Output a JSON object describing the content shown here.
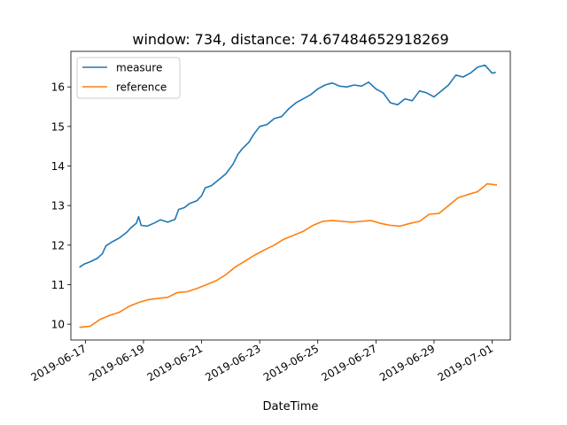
{
  "chart_data": {
    "type": "line",
    "title": "window: 734, distance: 74.67484652918269",
    "xlabel": "DateTime",
    "ylabel": "",
    "x_is_date": true,
    "xlim": [
      "2019-06-16T12:00",
      "2019-07-01T15:00"
    ],
    "ylim": [
      9.6,
      16.9
    ],
    "x_ticks": [
      "2019-06-17",
      "2019-06-19",
      "2019-06-21",
      "2019-06-23",
      "2019-06-25",
      "2019-06-27",
      "2019-06-29",
      "2019-07-01"
    ],
    "y_ticks": [
      10,
      11,
      12,
      13,
      14,
      15,
      16
    ],
    "grid": false,
    "legend_position": "top-left",
    "series": [
      {
        "name": "measure",
        "color": "#1f77b4",
        "points": [
          [
            "2019-06-16T19:00",
            11.44
          ],
          [
            "2019-06-16T23:00",
            11.52
          ],
          [
            "2019-06-17T04:00",
            11.58
          ],
          [
            "2019-06-17T10:00",
            11.67
          ],
          [
            "2019-06-17T14:00",
            11.78
          ],
          [
            "2019-06-17T17:00",
            11.98
          ],
          [
            "2019-06-17T22:00",
            12.08
          ],
          [
            "2019-06-18T04:00",
            12.18
          ],
          [
            "2019-06-18T10:00",
            12.32
          ],
          [
            "2019-06-18T14:00",
            12.45
          ],
          [
            "2019-06-18T18:00",
            12.55
          ],
          [
            "2019-06-18T20:00",
            12.72
          ],
          [
            "2019-06-18T22:00",
            12.5
          ],
          [
            "2019-06-19T03:00",
            12.48
          ],
          [
            "2019-06-19T09:00",
            12.56
          ],
          [
            "2019-06-19T14:00",
            12.64
          ],
          [
            "2019-06-19T20:00",
            12.58
          ],
          [
            "2019-06-20T02:00",
            12.65
          ],
          [
            "2019-06-20T05:00",
            12.9
          ],
          [
            "2019-06-20T10:00",
            12.95
          ],
          [
            "2019-06-20T14:00",
            13.05
          ],
          [
            "2019-06-20T20:00",
            13.12
          ],
          [
            "2019-06-21T00:00",
            13.25
          ],
          [
            "2019-06-21T03:00",
            13.45
          ],
          [
            "2019-06-21T08:00",
            13.5
          ],
          [
            "2019-06-21T14:00",
            13.65
          ],
          [
            "2019-06-21T20:00",
            13.8
          ],
          [
            "2019-06-22T02:00",
            14.05
          ],
          [
            "2019-06-22T06:00",
            14.3
          ],
          [
            "2019-06-22T10:00",
            14.45
          ],
          [
            "2019-06-22T15:00",
            14.6
          ],
          [
            "2019-06-22T19:00",
            14.8
          ],
          [
            "2019-06-23T00:00",
            15.0
          ],
          [
            "2019-06-23T06:00",
            15.05
          ],
          [
            "2019-06-23T12:00",
            15.2
          ],
          [
            "2019-06-23T18:00",
            15.25
          ],
          [
            "2019-06-24T00:00",
            15.45
          ],
          [
            "2019-06-24T06:00",
            15.6
          ],
          [
            "2019-06-24T12:00",
            15.7
          ],
          [
            "2019-06-24T18:00",
            15.8
          ],
          [
            "2019-06-25T00:00",
            15.95
          ],
          [
            "2019-06-25T06:00",
            16.05
          ],
          [
            "2019-06-25T12:00",
            16.1
          ],
          [
            "2019-06-25T18:00",
            16.02
          ],
          [
            "2019-06-26T00:00",
            16.0
          ],
          [
            "2019-06-26T06:00",
            16.05
          ],
          [
            "2019-06-26T12:00",
            16.02
          ],
          [
            "2019-06-26T18:00",
            16.12
          ],
          [
            "2019-06-27T00:00",
            15.95
          ],
          [
            "2019-06-27T06:00",
            15.85
          ],
          [
            "2019-06-27T12:00",
            15.6
          ],
          [
            "2019-06-27T18:00",
            15.55
          ],
          [
            "2019-06-28T00:00",
            15.7
          ],
          [
            "2019-06-28T06:00",
            15.65
          ],
          [
            "2019-06-28T12:00",
            15.9
          ],
          [
            "2019-06-28T18:00",
            15.85
          ],
          [
            "2019-06-29T00:00",
            15.75
          ],
          [
            "2019-06-29T06:00",
            15.9
          ],
          [
            "2019-06-29T12:00",
            16.05
          ],
          [
            "2019-06-29T18:00",
            16.3
          ],
          [
            "2019-06-30T00:00",
            16.25
          ],
          [
            "2019-06-30T06:00",
            16.35
          ],
          [
            "2019-06-30T12:00",
            16.5
          ],
          [
            "2019-06-30T18:00",
            16.55
          ],
          [
            "2019-07-01T00:00",
            16.35
          ],
          [
            "2019-07-01T03:00",
            16.37
          ]
        ]
      },
      {
        "name": "reference",
        "color": "#ff7f0e",
        "points": [
          [
            "2019-06-16T19:00",
            9.92
          ],
          [
            "2019-06-17T04:00",
            9.95
          ],
          [
            "2019-06-17T12:00",
            10.12
          ],
          [
            "2019-06-17T20:00",
            10.22
          ],
          [
            "2019-06-18T04:00",
            10.3
          ],
          [
            "2019-06-18T12:00",
            10.45
          ],
          [
            "2019-06-18T20:00",
            10.55
          ],
          [
            "2019-06-19T04:00",
            10.62
          ],
          [
            "2019-06-19T12:00",
            10.65
          ],
          [
            "2019-06-19T20:00",
            10.68
          ],
          [
            "2019-06-20T04:00",
            10.8
          ],
          [
            "2019-06-20T12:00",
            10.82
          ],
          [
            "2019-06-20T20:00",
            10.9
          ],
          [
            "2019-06-21T04:00",
            11.0
          ],
          [
            "2019-06-21T12:00",
            11.1
          ],
          [
            "2019-06-21T20:00",
            11.25
          ],
          [
            "2019-06-22T04:00",
            11.45
          ],
          [
            "2019-06-22T12:00",
            11.6
          ],
          [
            "2019-06-22T20:00",
            11.75
          ],
          [
            "2019-06-23T04:00",
            11.88
          ],
          [
            "2019-06-23T12:00",
            12.0
          ],
          [
            "2019-06-23T20:00",
            12.15
          ],
          [
            "2019-06-24T04:00",
            12.25
          ],
          [
            "2019-06-24T12:00",
            12.35
          ],
          [
            "2019-06-24T20:00",
            12.5
          ],
          [
            "2019-06-25T04:00",
            12.6
          ],
          [
            "2019-06-25T12:00",
            12.62
          ],
          [
            "2019-06-25T20:00",
            12.6
          ],
          [
            "2019-06-26T04:00",
            12.58
          ],
          [
            "2019-06-26T12:00",
            12.6
          ],
          [
            "2019-06-26T20:00",
            12.62
          ],
          [
            "2019-06-27T04:00",
            12.55
          ],
          [
            "2019-06-27T12:00",
            12.5
          ],
          [
            "2019-06-27T20:00",
            12.48
          ],
          [
            "2019-06-28T04:00",
            12.55
          ],
          [
            "2019-06-28T12:00",
            12.6
          ],
          [
            "2019-06-28T20:00",
            12.78
          ],
          [
            "2019-06-29T04:00",
            12.8
          ],
          [
            "2019-06-29T12:00",
            13.0
          ],
          [
            "2019-06-29T20:00",
            13.2
          ],
          [
            "2019-06-30T04:00",
            13.28
          ],
          [
            "2019-06-30T12:00",
            13.35
          ],
          [
            "2019-06-30T20:00",
            13.55
          ],
          [
            "2019-07-01T04:00",
            13.52
          ]
        ]
      }
    ]
  }
}
